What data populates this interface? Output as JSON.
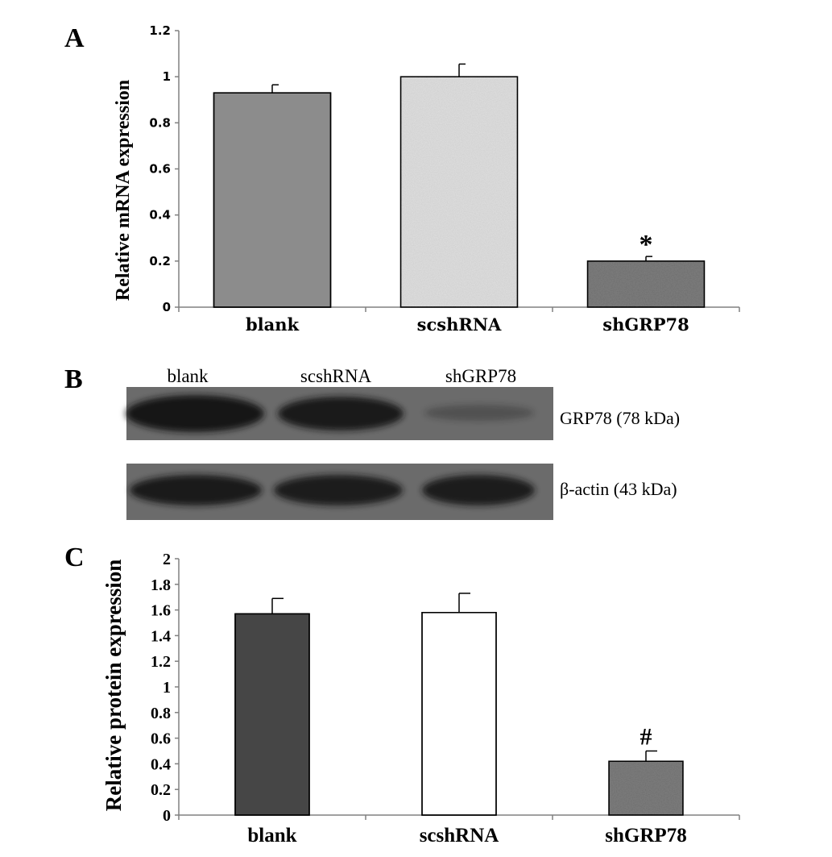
{
  "panels": {
    "a": {
      "letter": "A"
    },
    "b": {
      "letter": "B"
    },
    "c": {
      "letter": "C"
    }
  },
  "colors": {
    "blank_a": "#8c8c8c",
    "scshRNA_a": "#dcdcdc",
    "shGRP78": "#7a7a7a",
    "blank_c": "#464646",
    "scshRNA_c": "#ffffff",
    "blot_bg": "#6b6b6b",
    "band": "#161616"
  },
  "chart_data": [
    {
      "type": "bar",
      "panel": "A",
      "categories": [
        "blank",
        "scshRNA",
        "shGRP78"
      ],
      "values": [
        0.93,
        1.0,
        0.2
      ],
      "errors": [
        0.035,
        0.055,
        0.02
      ],
      "annotations": [
        "",
        "",
        "*"
      ],
      "ylabel": "Relative mRNA expression",
      "xlabel": "",
      "ylim": [
        0,
        1.2
      ],
      "yticks": [
        "0",
        "0.2",
        "0.4",
        "0.6",
        "0.8",
        "1",
        "1.2"
      ],
      "grid": false
    },
    {
      "type": "bar",
      "panel": "C",
      "categories": [
        "blank",
        "scshRNA",
        "shGRP78"
      ],
      "values": [
        1.57,
        1.58,
        0.42
      ],
      "errors": [
        0.12,
        0.15,
        0.08
      ],
      "annotations": [
        "",
        "",
        "#"
      ],
      "ylabel": "Relative protein expression",
      "xlabel": "",
      "ylim": [
        0,
        2
      ],
      "yticks": [
        "0",
        "0.2",
        "0.4",
        "0.6",
        "0.8",
        "1",
        "1.2",
        "1.4",
        "1.6",
        "1.8",
        "2"
      ],
      "grid": false
    }
  ],
  "blot": {
    "lanes": [
      "blank",
      "scshRNA",
      "shGRP78"
    ],
    "rows": [
      {
        "label": "GRP78 (78 kDa)",
        "band_intensity": [
          1.0,
          0.95,
          0.3
        ]
      },
      {
        "label": "β-actin (43 kDa)",
        "band_intensity": [
          0.95,
          0.92,
          0.92
        ]
      }
    ]
  }
}
